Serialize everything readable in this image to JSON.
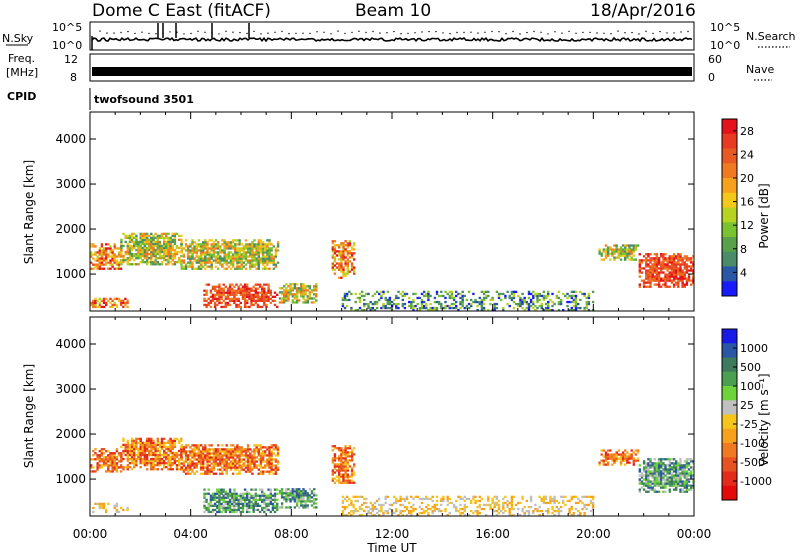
{
  "header": {
    "station": "Dome C East (fitACF)",
    "beam": "Beam 10",
    "date": "18/Apr/2016"
  },
  "nsky_panel": {
    "left_label": "N.Sky",
    "left_ticks": [
      "10^5",
      "10^0"
    ],
    "right_ticks": [
      "10^5",
      "10^0"
    ],
    "right_label": "N.Search"
  },
  "freq_panel": {
    "left_label_1": "Freq.",
    "left_label_2": "[MHz]",
    "left_ticks": [
      "12",
      "8"
    ],
    "right_ticks": [
      "60",
      "0"
    ],
    "right_label": "Nave"
  },
  "cpid": {
    "label": "CPID",
    "value": "twofsound 3501"
  },
  "chart_data": [
    {
      "type": "heatmap",
      "title": "",
      "xlabel": "Time UT",
      "ylabel": "Slant Range [km]",
      "xlim": [
        0,
        24
      ],
      "ylim": [
        180,
        4600
      ],
      "x_ticks": [
        "00:00",
        "04:00",
        "08:00",
        "12:00",
        "16:00",
        "20:00",
        "00:00"
      ],
      "y_ticks": [
        "1000",
        "2000",
        "3000",
        "4000"
      ],
      "colorbar": {
        "label": "Power [dB]",
        "ticks": [
          "4",
          "8",
          "12",
          "16",
          "20",
          "24",
          "28"
        ],
        "range": [
          0,
          30
        ],
        "colors": [
          "#1a1aff",
          "#2a56a6",
          "#4a8c6a",
          "#58a04a",
          "#7ac230",
          "#b8d220",
          "#f4c81a",
          "#f6a21c",
          "#ef7a22",
          "#e95a22",
          "#e83a22",
          "#e4121a"
        ]
      },
      "regions": [
        {
          "t": [
            0.0,
            1.2
          ],
          "r": [
            1100,
            1650
          ],
          "level": "high"
        },
        {
          "t": [
            1.2,
            3.6
          ],
          "r": [
            1200,
            1900
          ],
          "level": "mid"
        },
        {
          "t": [
            3.6,
            7.5
          ],
          "r": [
            1100,
            1750
          ],
          "level": "mid"
        },
        {
          "t": [
            0.0,
            1.5
          ],
          "r": [
            250,
            450
          ],
          "level": "high"
        },
        {
          "t": [
            4.5,
            7.4
          ],
          "r": [
            250,
            750
          ],
          "level": "peak"
        },
        {
          "t": [
            7.5,
            9.0
          ],
          "r": [
            350,
            800
          ],
          "level": "mid"
        },
        {
          "t": [
            9.6,
            10.5
          ],
          "r": [
            900,
            1750
          ],
          "level": "high"
        },
        {
          "t": [
            10.0,
            20.0
          ],
          "r": [
            180,
            600
          ],
          "level": "low"
        },
        {
          "t": [
            20.2,
            21.8
          ],
          "r": [
            1300,
            1650
          ],
          "level": "mid"
        },
        {
          "t": [
            21.8,
            24.0
          ],
          "r": [
            700,
            1450
          ],
          "level": "peak"
        }
      ]
    },
    {
      "type": "heatmap",
      "title": "",
      "xlabel": "Time UT",
      "ylabel": "Slant Range [km]",
      "xlim": [
        0,
        24
      ],
      "ylim": [
        180,
        4600
      ],
      "x_ticks": [
        "00:00",
        "04:00",
        "08:00",
        "12:00",
        "16:00",
        "20:00",
        "00:00"
      ],
      "y_ticks": [
        "1000",
        "2000",
        "3000",
        "4000"
      ],
      "colorbar": {
        "label": "Velocity [m s⁻¹]",
        "ticks": [
          "1000",
          "500",
          "100",
          "25",
          "-25",
          "-100",
          "-500",
          "-1000"
        ],
        "range": [
          -1000,
          1000
        ],
        "colors": [
          "#1a1ae6",
          "#2a56a6",
          "#3e7a5c",
          "#4aa050",
          "#6ed33a",
          "#c0c0c0",
          "#f6c41a",
          "#f6a21c",
          "#ef7a22",
          "#e85222",
          "#e42a1a",
          "#e40a0a"
        ]
      },
      "regions": [
        {
          "t": [
            0.0,
            1.2
          ],
          "r": [
            1150,
            1650
          ],
          "level": "neg"
        },
        {
          "t": [
            1.2,
            3.6
          ],
          "r": [
            1200,
            1900
          ],
          "level": "neg"
        },
        {
          "t": [
            3.6,
            7.5
          ],
          "r": [
            1100,
            1750
          ],
          "level": "neg"
        },
        {
          "t": [
            0.0,
            1.5
          ],
          "r": [
            250,
            450
          ],
          "level": "small"
        },
        {
          "t": [
            4.5,
            7.4
          ],
          "r": [
            250,
            750
          ],
          "level": "pos"
        },
        {
          "t": [
            7.5,
            9.0
          ],
          "r": [
            350,
            800
          ],
          "level": "pos"
        },
        {
          "t": [
            9.6,
            10.5
          ],
          "r": [
            900,
            1750
          ],
          "level": "neg"
        },
        {
          "t": [
            10.0,
            20.0
          ],
          "r": [
            180,
            600
          ],
          "level": "small"
        },
        {
          "t": [
            20.2,
            21.8
          ],
          "r": [
            1300,
            1650
          ],
          "level": "neg"
        },
        {
          "t": [
            21.8,
            24.0
          ],
          "r": [
            700,
            1450
          ],
          "level": "pos"
        }
      ]
    }
  ]
}
